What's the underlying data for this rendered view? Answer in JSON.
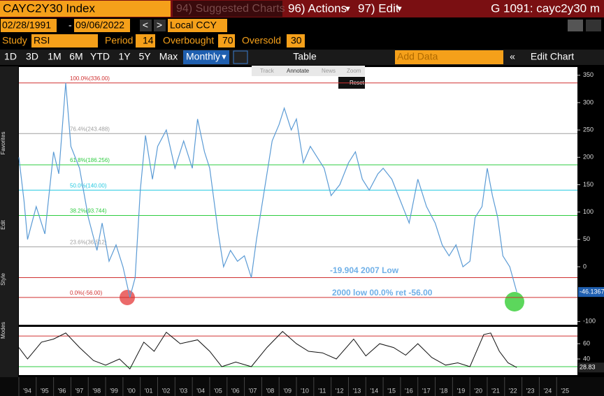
{
  "header": {
    "title": "CAYC2Y30 Index",
    "suggested": "94) Suggested Charts",
    "actions": "96) Actions",
    "edit": "97) Edit",
    "ticker": "G 1091: cayc2y30 m"
  },
  "range": {
    "start": "02/28/1991",
    "separator": "-",
    "end": "09/06/2022",
    "currency": "Local CCY"
  },
  "study": {
    "label": "Study",
    "value": "RSI",
    "period_label": "Period",
    "period": 14,
    "overbought_label": "Overbought",
    "overbought": 70,
    "oversold_label": "Oversold",
    "oversold": 30
  },
  "toolbar": {
    "periods": [
      "1D",
      "3D",
      "1M",
      "6M",
      "YTD",
      "1Y",
      "5Y",
      "Max"
    ],
    "frequency": "Monthly",
    "table": "Table",
    "add_data": "Add Data",
    "edit_chart": "Edit Chart"
  },
  "annotate_bar": [
    "Track",
    "Annotate",
    "News",
    "Zoom"
  ],
  "reset": "Reset",
  "side_labels": [
    "Favorites",
    "Edit",
    "Style",
    "Modes"
  ],
  "chart_data": [
    {
      "type": "line",
      "color": "#5b9bd5",
      "x": [
        1994.0,
        1994.3,
        1994.5,
        1995.0,
        1995.5,
        1996.0,
        1996.3,
        1996.7,
        1997.0,
        1997.5,
        1998.0,
        1998.5,
        1998.8,
        1999.2,
        1999.6,
        2000.0,
        2000.4,
        2000.7,
        2001.0,
        2001.3,
        2001.7,
        2002.0,
        2002.5,
        2003.0,
        2003.5,
        2004.0,
        2004.3,
        2004.7,
        2005.0,
        2005.5,
        2005.8,
        2006.2,
        2006.6,
        2007.0,
        2007.4,
        2007.7,
        2008.2,
        2008.6,
        2009.0,
        2009.3,
        2009.7,
        2010.0,
        2010.4,
        2010.8,
        2011.2,
        2011.6,
        2012.0,
        2012.5,
        2013.0,
        2013.4,
        2013.8,
        2014.2,
        2014.7,
        2015.0,
        2015.5,
        2016.0,
        2016.5,
        2017.0,
        2017.5,
        2018.0,
        2018.4,
        2018.8,
        2019.2,
        2019.6,
        2020.0,
        2020.3,
        2020.7,
        2021.0,
        2021.3,
        2021.6,
        2021.9,
        2022.3,
        2022.7
      ],
      "values": [
        200,
        120,
        50,
        110,
        60,
        210,
        170,
        336,
        220,
        180,
        90,
        30,
        80,
        10,
        40,
        0,
        -56,
        -20,
        140,
        240,
        160,
        220,
        250,
        180,
        230,
        180,
        270,
        210,
        180,
        60,
        0,
        30,
        10,
        20,
        -19.904,
        50,
        150,
        230,
        260,
        290,
        250,
        270,
        190,
        220,
        200,
        180,
        130,
        150,
        190,
        210,
        160,
        140,
        170,
        180,
        160,
        120,
        80,
        160,
        110,
        80,
        40,
        20,
        40,
        0,
        10,
        90,
        110,
        180,
        130,
        90,
        20,
        0,
        -46.1367
      ],
      "xlim": [
        1994,
        2026.2
      ],
      "ylim": [
        -106,
        365
      ],
      "yticks": [
        -100,
        0,
        50,
        100,
        150,
        200,
        250,
        300,
        350
      ],
      "xticks": [
        {
          "value": 1994,
          "label": "'94"
        },
        {
          "value": 1995,
          "label": "'95"
        },
        {
          "value": 1996,
          "label": "'96"
        },
        {
          "value": 1997,
          "label": "'97"
        },
        {
          "value": 1998,
          "label": "'98"
        },
        {
          "value": 1999,
          "label": "'99"
        },
        {
          "value": 2000,
          "label": "'00"
        },
        {
          "value": 2001,
          "label": "'01"
        },
        {
          "value": 2002,
          "label": "'02"
        },
        {
          "value": 2003,
          "label": "'03"
        },
        {
          "value": 2004,
          "label": "'04"
        },
        {
          "value": 2005,
          "label": "'05"
        },
        {
          "value": 2006,
          "label": "'06"
        },
        {
          "value": 2007,
          "label": "'07"
        },
        {
          "value": 2008,
          "label": "'08"
        },
        {
          "value": 2009,
          "label": "'09"
        },
        {
          "value": 2010,
          "label": "'10"
        },
        {
          "value": 2011,
          "label": "'11"
        },
        {
          "value": 2012,
          "label": "'12"
        },
        {
          "value": 2013,
          "label": "'13"
        },
        {
          "value": 2014,
          "label": "'14"
        },
        {
          "value": 2015,
          "label": "'15"
        },
        {
          "value": 2016,
          "label": "'16"
        },
        {
          "value": 2017,
          "label": "'17"
        },
        {
          "value": 2018,
          "label": "'18"
        },
        {
          "value": 2019,
          "label": "'19"
        },
        {
          "value": 2020,
          "label": "'20"
        },
        {
          "value": 2021,
          "label": "'21"
        },
        {
          "value": 2022,
          "label": "'22"
        },
        {
          "value": 2023,
          "label": "'23"
        },
        {
          "value": 2024,
          "label": "'24"
        },
        {
          "value": 2025,
          "label": "'25"
        }
      ],
      "levels": [
        {
          "value": 336,
          "label": "100.0%(336.00)",
          "color": "#d03030"
        },
        {
          "value": 243.488,
          "label": "76.4%(243.488)",
          "color": "#a0a0a0"
        },
        {
          "value": 186.256,
          "label": "61.8%(186.256)",
          "color": "#2ecc40"
        },
        {
          "value": 140,
          "label": "50.0%(140.00)",
          "color": "#22c8e0"
        },
        {
          "value": 93.744,
          "label": "38.2%(93.744)",
          "color": "#2ecc40"
        },
        {
          "value": 36.512,
          "label": "23.6%(36.512)",
          "color": "#a0a0a0"
        },
        {
          "value": -56,
          "label": "0.0%(-56.00)",
          "color": "#d03030"
        }
      ],
      "reference_lines": [
        {
          "value": -19.904,
          "color": "#d03030"
        }
      ],
      "annotations": [
        "-19.904 2007 Low",
        "2000 low 00.0% ret -56.00"
      ]
    },
    {
      "type": "line",
      "color": "#111111",
      "x": [
        1994.0,
        1994.5,
        1995.3,
        1996.0,
        1996.7,
        1997.5,
        1998.3,
        1999.0,
        1999.8,
        2000.4,
        2001.2,
        2001.8,
        2002.5,
        2003.3,
        2004.3,
        2005.0,
        2005.7,
        2006.5,
        2007.4,
        2008.3,
        2009.2,
        2010.0,
        2010.7,
        2011.5,
        2012.3,
        2013.3,
        2014.0,
        2014.8,
        2015.6,
        2016.3,
        2017.0,
        2017.8,
        2018.6,
        2019.3,
        2020.0,
        2020.8,
        2021.2,
        2021.7,
        2022.2,
        2022.7
      ],
      "values": [
        55,
        40,
        62,
        66,
        74,
        55,
        38,
        32,
        40,
        27,
        62,
        50,
        75,
        60,
        65,
        50,
        30,
        36,
        30,
        55,
        76,
        60,
        50,
        48,
        40,
        66,
        44,
        60,
        55,
        45,
        60,
        42,
        32,
        35,
        30,
        72,
        74,
        50,
        35,
        28.83
      ],
      "xlim": [
        1994,
        2026.2
      ],
      "ylim": [
        19,
        82
      ],
      "yticks": [
        40,
        60
      ]
    }
  ]
}
